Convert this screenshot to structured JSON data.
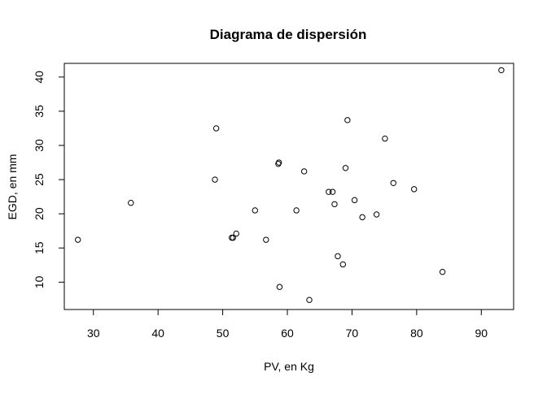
{
  "chart_data": {
    "type": "scatter",
    "title": "Diagrama de dispersión",
    "xlabel": "PV, en Kg",
    "ylabel": "EGD, en mm",
    "xlim": [
      25.5,
      95
    ],
    "ylim": [
      6,
      42
    ],
    "x_ticks": [
      "30",
      "40",
      "50",
      "60",
      "70",
      "80",
      "90"
    ],
    "y_ticks": [
      "10",
      "15",
      "20",
      "25",
      "30",
      "35",
      "40"
    ],
    "grid": false,
    "marker": "open-circle",
    "points": [
      {
        "x": 27.6,
        "y": 16.2
      },
      {
        "x": 35.8,
        "y": 21.6
      },
      {
        "x": 48.8,
        "y": 25.0
      },
      {
        "x": 49.0,
        "y": 32.5
      },
      {
        "x": 51.4,
        "y": 16.5
      },
      {
        "x": 51.6,
        "y": 16.5
      },
      {
        "x": 52.1,
        "y": 17.1
      },
      {
        "x": 55.0,
        "y": 20.5
      },
      {
        "x": 56.7,
        "y": 16.2
      },
      {
        "x": 58.6,
        "y": 27.3
      },
      {
        "x": 58.7,
        "y": 27.5
      },
      {
        "x": 58.8,
        "y": 9.3
      },
      {
        "x": 61.4,
        "y": 20.5
      },
      {
        "x": 62.6,
        "y": 26.2
      },
      {
        "x": 63.4,
        "y": 7.4
      },
      {
        "x": 66.4,
        "y": 23.2
      },
      {
        "x": 67.0,
        "y": 23.2
      },
      {
        "x": 67.3,
        "y": 21.4
      },
      {
        "x": 67.8,
        "y": 13.8
      },
      {
        "x": 68.6,
        "y": 12.6
      },
      {
        "x": 69.0,
        "y": 26.7
      },
      {
        "x": 69.3,
        "y": 33.7
      },
      {
        "x": 70.4,
        "y": 22.0
      },
      {
        "x": 71.6,
        "y": 19.5
      },
      {
        "x": 73.8,
        "y": 19.9
      },
      {
        "x": 75.1,
        "y": 31.0
      },
      {
        "x": 76.4,
        "y": 24.5
      },
      {
        "x": 79.6,
        "y": 23.6
      },
      {
        "x": 84.0,
        "y": 11.5
      },
      {
        "x": 93.1,
        "y": 41.0
      }
    ]
  }
}
